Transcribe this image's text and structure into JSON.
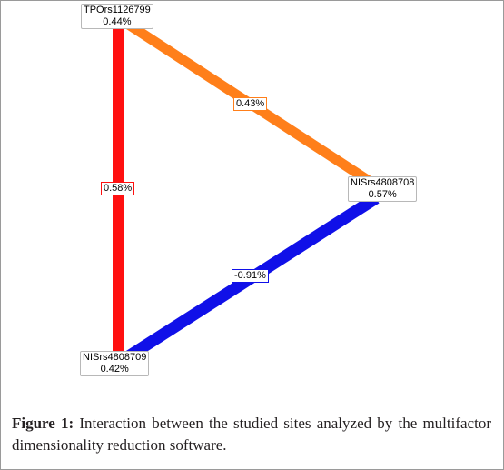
{
  "nodes": [
    {
      "id": "tpo",
      "name": "TPOrs1126799",
      "value": "0.44%"
    },
    {
      "id": "nis8",
      "name": "NISrs4808708",
      "value": "0.57%"
    },
    {
      "id": "nis9",
      "name": "NISrs4808709",
      "value": "0.42%"
    }
  ],
  "edges": [
    {
      "from": "tpo",
      "to": "nis8",
      "label": "0.43%",
      "color": "#ff7f1a"
    },
    {
      "from": "tpo",
      "to": "nis9",
      "label": "0.58%",
      "color": "#ff1010"
    },
    {
      "from": "nis9",
      "to": "nis8",
      "label": "-0.91%",
      "color": "#1010e8"
    }
  ],
  "caption": {
    "label": "Figure 1:",
    "text": " Interaction between the studied sites analyzed by the multifactor dimensionality reduction software."
  }
}
